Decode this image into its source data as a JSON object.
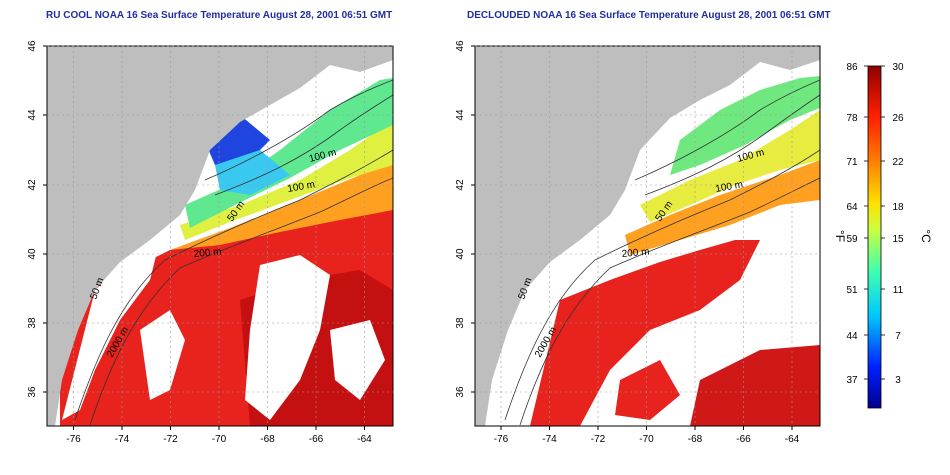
{
  "panels": [
    {
      "title": "RU COOL NOAA 16 Sea Surface Temperature August 28, 2001 06:51 GMT",
      "variant": "cool",
      "contour_labels": [
        "100 m",
        "100 m",
        "50 m",
        "200 m",
        "50 m",
        "2000 m"
      ]
    },
    {
      "title": "DECLOUDED NOAA 16 Sea Surface Temperature August 28, 2001 06:51 GMT",
      "variant": "declouded",
      "contour_labels": [
        "100 m",
        "100 m",
        "50 m",
        "200 m",
        "50 m",
        "2000 m"
      ]
    }
  ],
  "axes": {
    "x_ticks": [
      "-76",
      "-74",
      "-72",
      "-70",
      "-68",
      "-66",
      "-64"
    ],
    "y_ticks": [
      "46",
      "44",
      "42",
      "40",
      "38",
      "36"
    ]
  },
  "colorbar": {
    "fahrenheit_unit": "°F",
    "celsius_unit": "°C",
    "fahrenheit_ticks": [
      "86",
      "78",
      "71",
      "64",
      "59",
      "51",
      "44",
      "37"
    ],
    "celsius_ticks": [
      "30",
      "26",
      "22",
      "18",
      "15",
      "11",
      "7",
      "3"
    ]
  },
  "colors": {
    "land": "#bebebe",
    "cloud": "#ffffff",
    "title": "#1f2f9f"
  }
}
